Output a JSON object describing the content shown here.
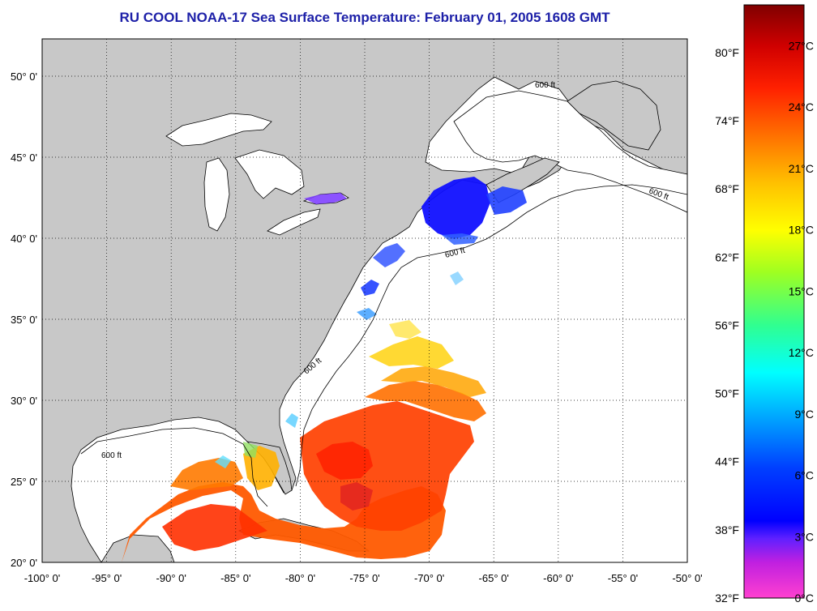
{
  "title": "RU COOL  NOAA-17  Sea Surface Temperature:  February 01, 2005 1608 GMT",
  "map": {
    "lon_range": [
      -100,
      -50
    ],
    "lat_range": [
      20,
      52.3
    ],
    "lon_ticks": [
      {
        "value": -100,
        "label": "-100° 0'"
      },
      {
        "value": -95,
        "label": "-95° 0'"
      },
      {
        "value": -90,
        "label": "-90° 0'"
      },
      {
        "value": -85,
        "label": "-85° 0'"
      },
      {
        "value": -80,
        "label": "-80° 0'"
      },
      {
        "value": -75,
        "label": "-75° 0'"
      },
      {
        "value": -70,
        "label": "-70° 0'"
      },
      {
        "value": -65,
        "label": "-65° 0'"
      },
      {
        "value": -60,
        "label": "-60° 0'"
      },
      {
        "value": -55,
        "label": "-55° 0'"
      },
      {
        "value": -50,
        "label": "-50° 0'"
      }
    ],
    "lat_ticks": [
      {
        "value": 20,
        "label": "20° 0'"
      },
      {
        "value": 25,
        "label": "25° 0'"
      },
      {
        "value": 30,
        "label": "30° 0'"
      },
      {
        "value": 35,
        "label": "35° 0'"
      },
      {
        "value": 40,
        "label": "40° 0'"
      },
      {
        "value": 45,
        "label": "45° 0'"
      },
      {
        "value": 50,
        "label": "50° 0'"
      }
    ],
    "isobath_label": "600 ft",
    "colors": {
      "land": "#c8c8c8",
      "ocean": "#ffffff",
      "grid": "#000000"
    }
  },
  "colorbar": {
    "celsius_ticks": [
      "27°C",
      "24°C",
      "21°C",
      "18°C",
      "15°C",
      "12°C",
      "9°C",
      "6°C",
      "3°C",
      "0°C"
    ],
    "fahrenheit_ticks": [
      "80°F",
      "74°F",
      "68°F",
      "62°F",
      "56°F",
      "50°F",
      "44°F",
      "38°F",
      "32°F"
    ],
    "range_celsius": [
      0,
      29
    ],
    "colors": [
      "#ff40c0",
      "#8a2be2",
      "#0000ff",
      "#0050ff",
      "#00b0ff",
      "#00ffff",
      "#40ff90",
      "#b0ff00",
      "#ffff00",
      "#ffc000",
      "#ff8000",
      "#ff3000",
      "#e00000",
      "#900000"
    ]
  }
}
